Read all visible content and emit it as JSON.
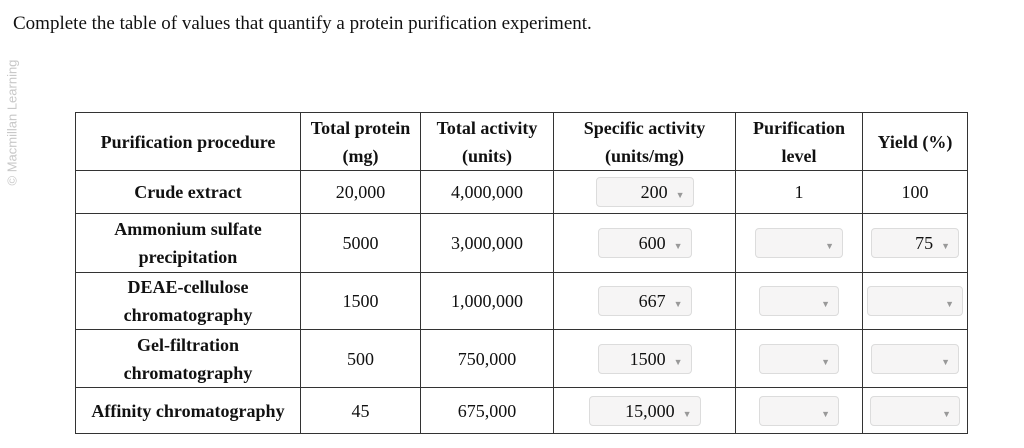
{
  "watermark": "© Macmillan Learning",
  "prompt": "Complete the table of values that quantify a protein purification experiment.",
  "headers": [
    "Purification procedure",
    "Total protein (mg)",
    "Total activity (units)",
    "Specific activity (units/mg)",
    "Purification level",
    "Yield (%)"
  ],
  "rows": [
    {
      "procedure": "Crude extract",
      "protein": "20,000",
      "activity": "4,000,000",
      "specific": "200",
      "level": "1",
      "yield": "100"
    },
    {
      "procedure": "Ammonium sulfate precipitation",
      "protein": "5000",
      "activity": "3,000,000",
      "specific": "600",
      "level": "",
      "yield": "75"
    },
    {
      "procedure": "DEAE-cellulose chromatography",
      "protein": "1500",
      "activity": "1,000,000",
      "specific": "667",
      "level": "",
      "yield": ""
    },
    {
      "procedure": "Gel-filtration chromatography",
      "protein": "500",
      "activity": "750,000",
      "specific": "1500",
      "level": "",
      "yield": ""
    },
    {
      "procedure": "Affinity chromatography",
      "protein": "45",
      "activity": "675,000",
      "specific": "15,000",
      "level": "",
      "yield": ""
    }
  ]
}
